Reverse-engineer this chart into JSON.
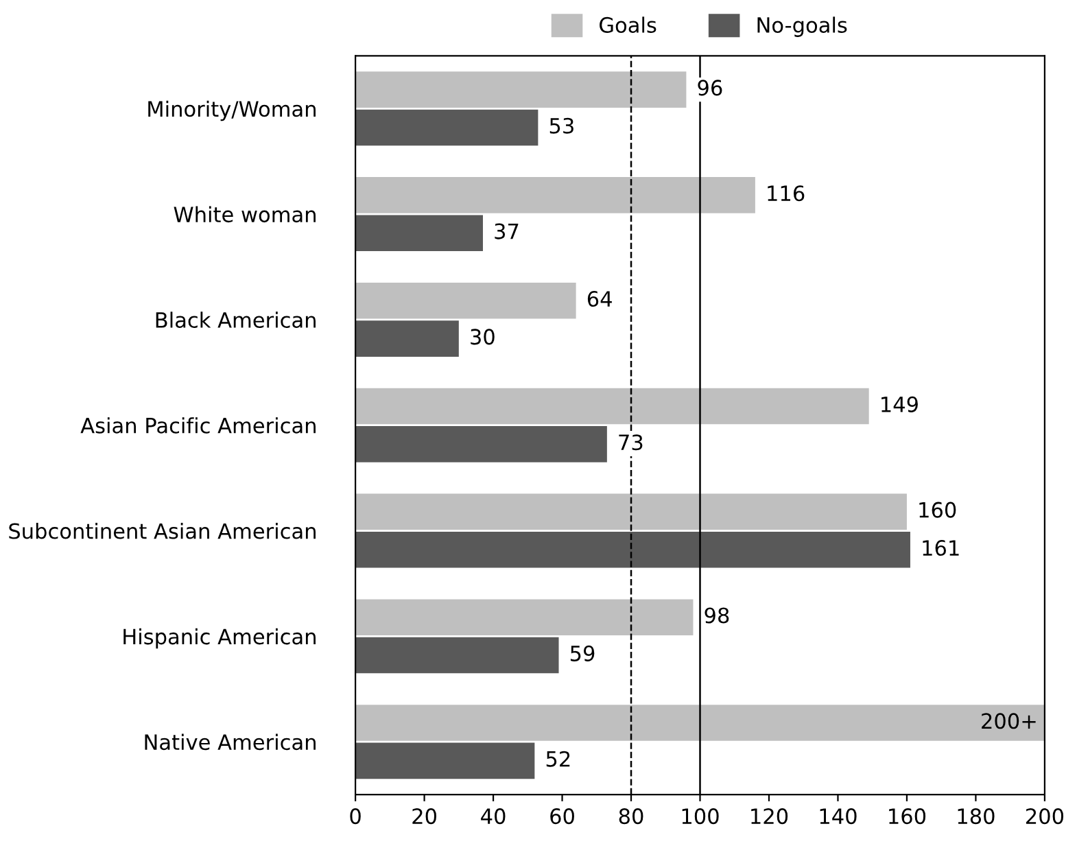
{
  "chart_data": {
    "type": "bar",
    "orientation": "horizontal",
    "categories": [
      "Minority/Woman",
      "White woman",
      "Black American",
      "Asian Pacific American",
      "Subcontinent Asian American",
      "Hispanic American",
      "Native American"
    ],
    "series": [
      {
        "name": "Goals",
        "color": "#bfbfbf",
        "values": [
          96,
          116,
          64,
          149,
          160,
          98,
          200
        ],
        "value_labels": [
          "96",
          "116",
          "64",
          "149",
          "160",
          "98",
          "200+"
        ]
      },
      {
        "name": "No-goals",
        "color": "#595959",
        "values": [
          53,
          37,
          30,
          73,
          161,
          59,
          52
        ],
        "value_labels": [
          "53",
          "37",
          "30",
          "73",
          "161",
          "59",
          "52"
        ]
      }
    ],
    "xlim": [
      0,
      200
    ],
    "xticks": [
      0,
      20,
      40,
      60,
      80,
      100,
      120,
      140,
      160,
      180,
      200
    ],
    "ref_lines": [
      {
        "axis": "x",
        "value": 80,
        "line_style": "dashed",
        "color": "#000000"
      },
      {
        "axis": "x",
        "value": 100,
        "line_style": "solid",
        "color": "#000000"
      }
    ],
    "grid": false,
    "legend": "top"
  }
}
